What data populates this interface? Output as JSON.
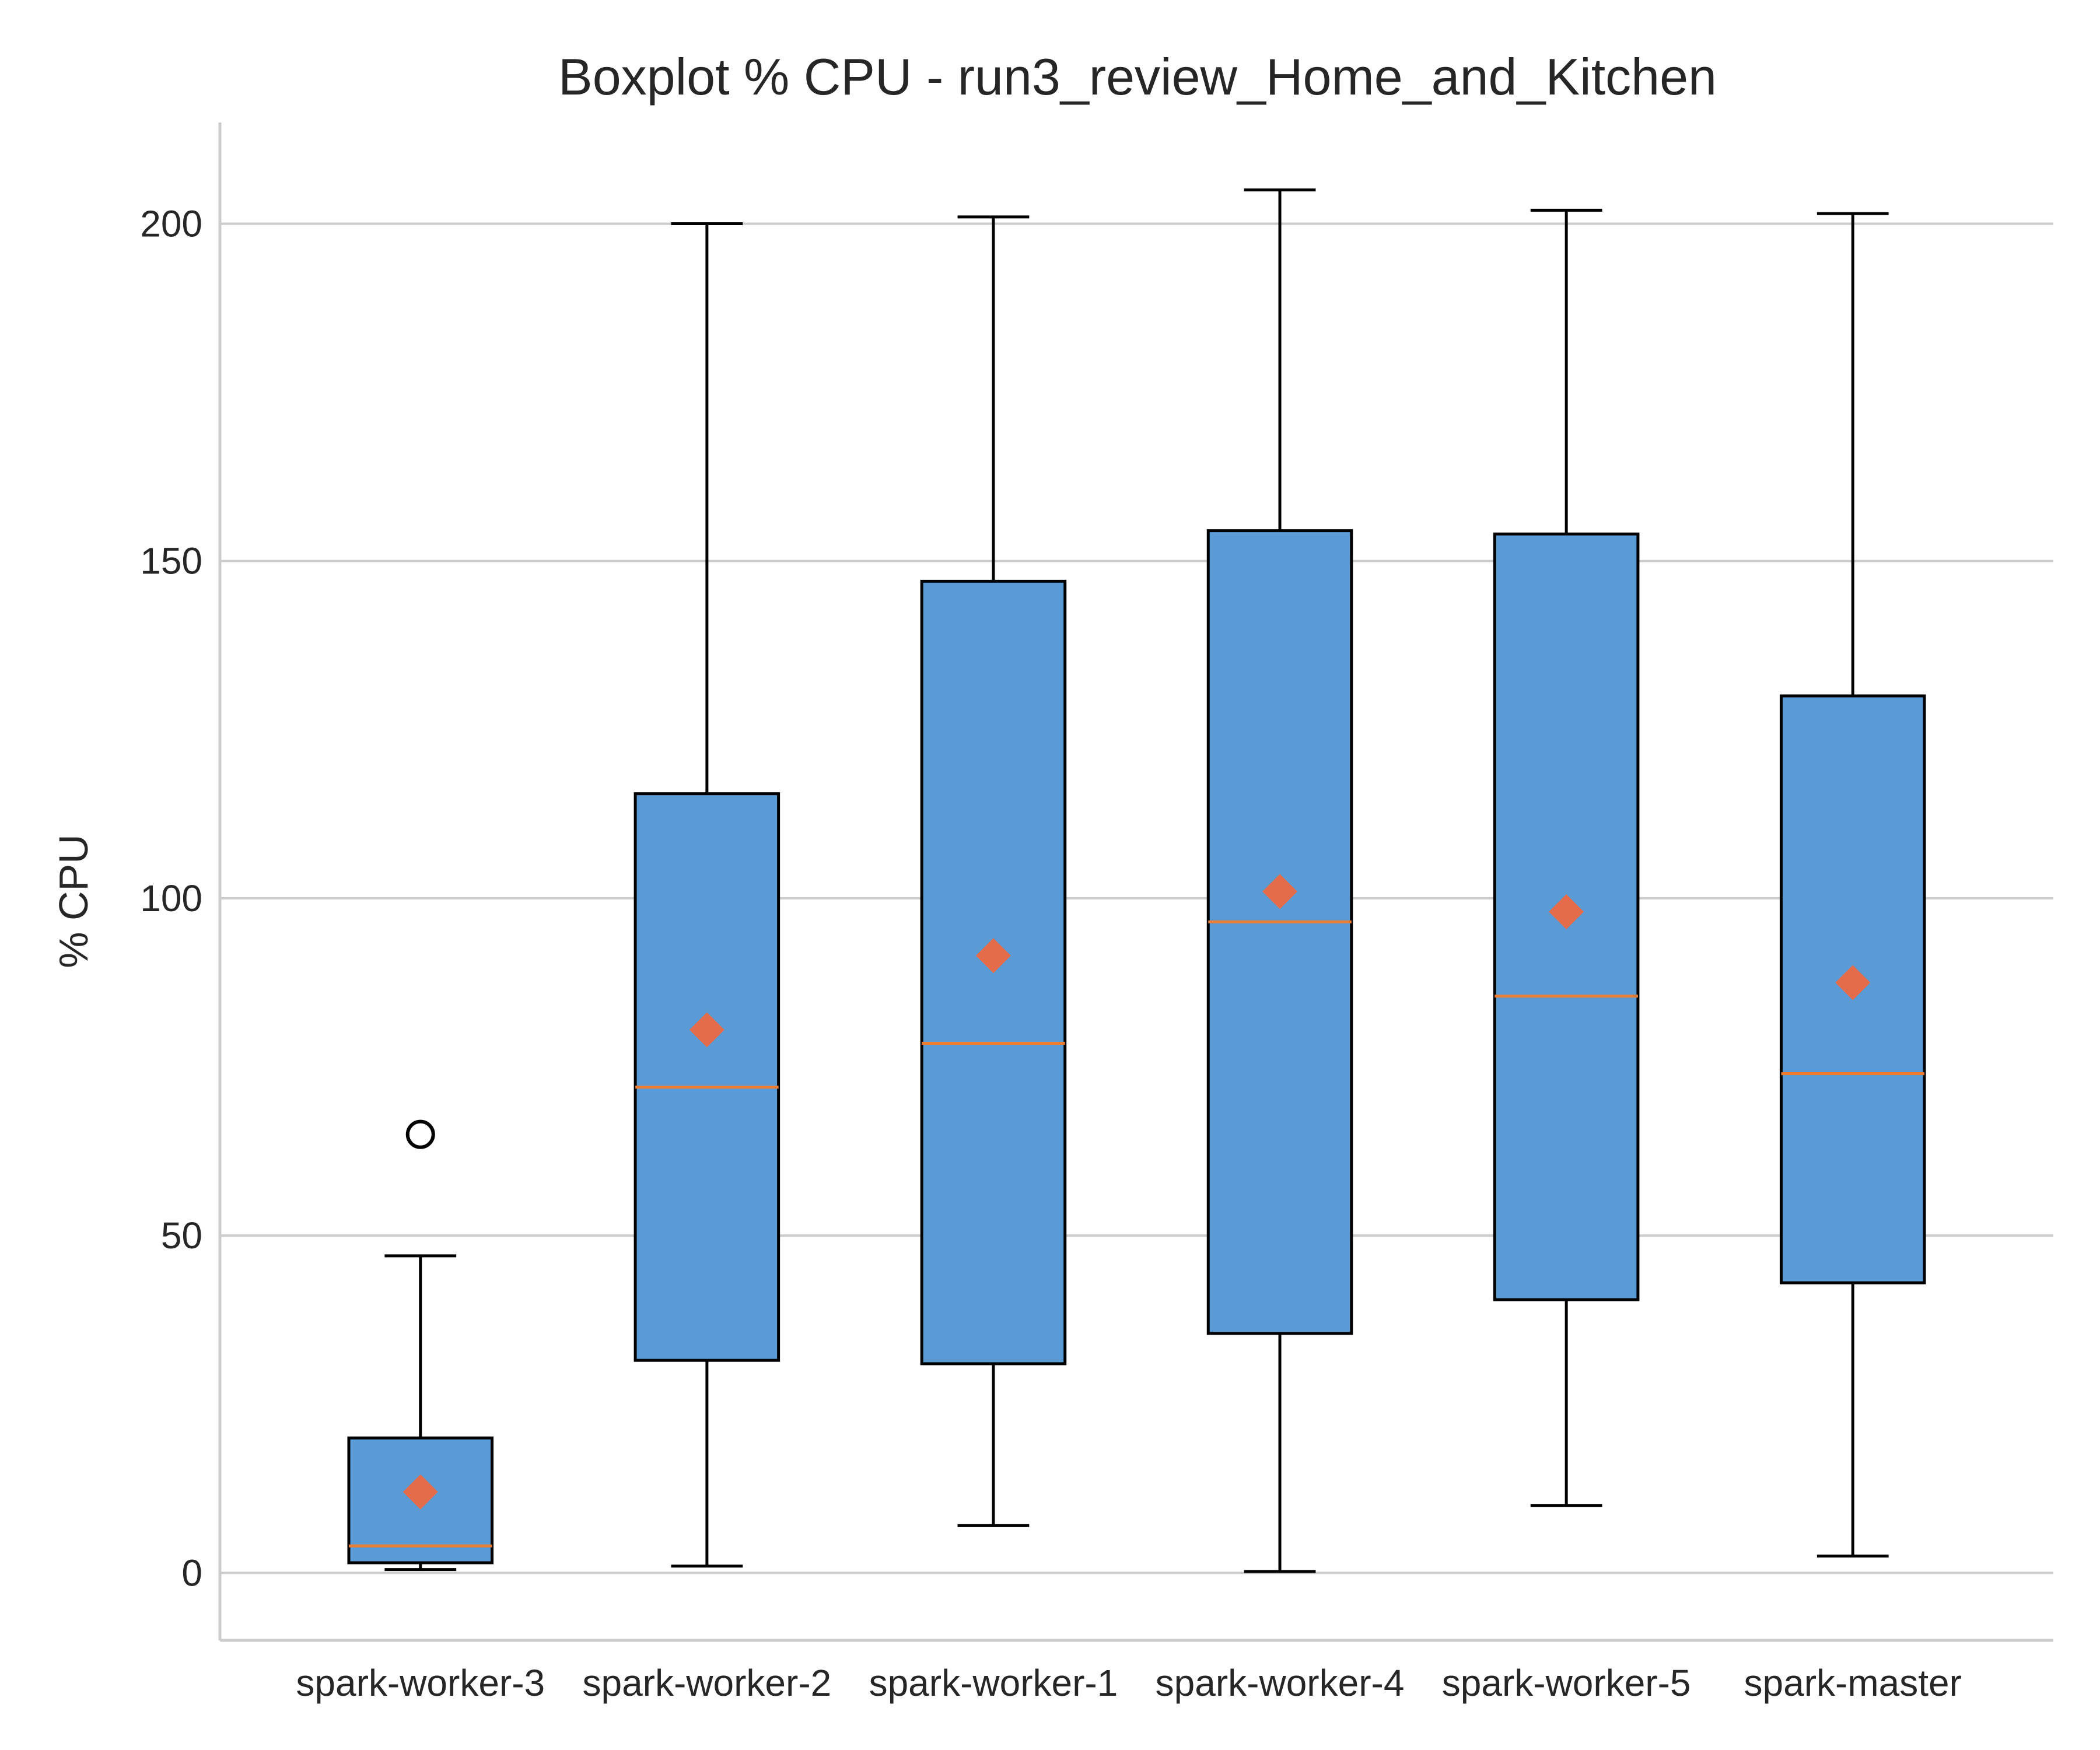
{
  "chart_data": {
    "type": "box",
    "title": "Boxplot % CPU - run3_review_Home_and_Kitchen",
    "xlabel": "",
    "ylabel": "% CPU",
    "ylim": [
      -10,
      215
    ],
    "yticks": [
      0,
      50,
      100,
      150,
      200
    ],
    "grid": "horizontal",
    "colors": {
      "box_fill": "#5b9bd5",
      "box_edge": "#000000",
      "median": "#ed7d31",
      "mean_marker": "#e46c4b",
      "grid": "#cccccc",
      "axis": "#cccccc"
    },
    "boxes": [
      {
        "name": "spark-worker-3",
        "whisker_low": 0.5,
        "q1": 1.5,
        "median": 4,
        "q3": 20,
        "whisker_high": 47,
        "mean": 12,
        "outliers": [
          65
        ]
      },
      {
        "name": "spark-worker-2",
        "whisker_low": 1,
        "q1": 31.5,
        "median": 72,
        "q3": 115.5,
        "whisker_high": 200,
        "mean": 80.5,
        "outliers": []
      },
      {
        "name": "spark-worker-1",
        "whisker_low": 7,
        "q1": 31,
        "median": 78.5,
        "q3": 147,
        "whisker_high": 201,
        "mean": 91.5,
        "outliers": []
      },
      {
        "name": "spark-worker-4",
        "whisker_low": 0.2,
        "q1": 35.5,
        "median": 96.5,
        "q3": 154.5,
        "whisker_high": 205,
        "mean": 101,
        "outliers": []
      },
      {
        "name": "spark-worker-5",
        "whisker_low": 10,
        "q1": 40.5,
        "median": 85.5,
        "q3": 154,
        "whisker_high": 202,
        "mean": 98,
        "outliers": []
      },
      {
        "name": "spark-master",
        "whisker_low": 2.5,
        "q1": 43,
        "median": 74,
        "q3": 130,
        "whisker_high": 201.5,
        "mean": 87.5,
        "outliers": []
      }
    ]
  }
}
